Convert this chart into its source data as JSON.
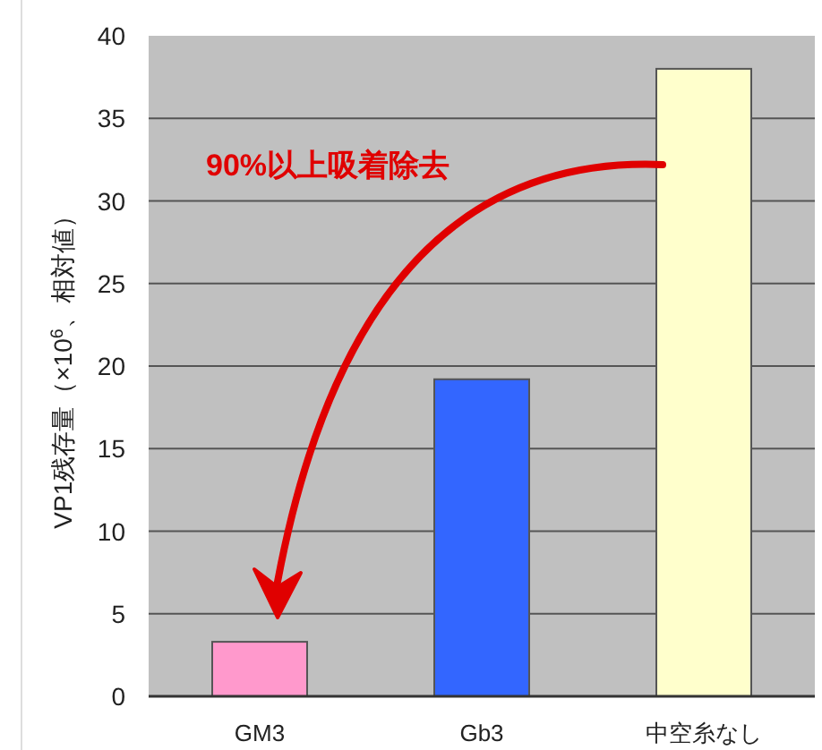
{
  "chart_data": {
    "type": "bar",
    "categories": [
      "GM3",
      "Gb3",
      "中空糸なし"
    ],
    "values": [
      3.3,
      19.2,
      38
    ],
    "colors": [
      "#ff99cc",
      "#3366ff",
      "#ffffcc"
    ],
    "ylabel": "VP1残存量（×10$^{6}$、相対値）",
    "ylim": [
      0,
      40
    ],
    "yticks": [
      0,
      5,
      10,
      15,
      20,
      25,
      30,
      35,
      40
    ],
    "grid": "y",
    "annotations": [
      "90%以上吸着除去"
    ]
  }
}
